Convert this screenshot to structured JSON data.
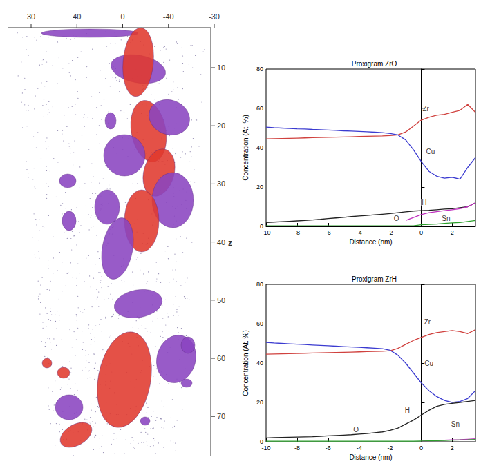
{
  "reconstruction": {
    "top_ticks": [
      "30",
      "40",
      "0",
      "-40",
      "-30"
    ],
    "z_label": "z",
    "z_ticks": [
      10,
      20,
      30,
      40,
      50,
      60,
      70
    ]
  },
  "chart_data": [
    {
      "type": "line",
      "title": "Proxigram ZrO",
      "x_label": "Distance (nm)",
      "y_label": "Concentration (At. %)",
      "x": [
        -10,
        -9.5,
        -9,
        -8.5,
        -8,
        -7.5,
        -7,
        -6.5,
        -6,
        -5.5,
        -5,
        -4.5,
        -4,
        -3.5,
        -3,
        -2.5,
        -2,
        -1.5,
        -1,
        -0.5,
        0,
        0.5,
        1,
        1.5,
        2,
        2.5,
        3,
        3.5
      ],
      "xlim": [
        -10,
        3.5
      ],
      "xticks": [
        -10,
        -8,
        -6,
        -4,
        -2,
        0,
        2
      ],
      "ylim": [
        0,
        80
      ],
      "yticks": [
        0,
        20,
        40,
        60,
        80
      ],
      "grid": false,
      "series": [
        {
          "name": "Zr",
          "color": "#d0413e",
          "values": [
            44.5,
            44.6,
            44.7,
            44.8,
            44.9,
            45,
            45.1,
            45.2,
            45.3,
            45.4,
            45.5,
            45.6,
            45.7,
            45.8,
            45.9,
            46,
            46.2,
            46.5,
            48,
            51,
            54,
            55.5,
            56.5,
            57,
            58,
            59,
            62,
            58
          ]
        },
        {
          "name": "Cu",
          "color": "#3b3bd0",
          "values": [
            50.5,
            50.2,
            50,
            49.8,
            49.6,
            49.5,
            49.3,
            49.2,
            49,
            48.8,
            48.6,
            48.5,
            48.3,
            48.1,
            47.9,
            47.7,
            47.2,
            46.5,
            44,
            39,
            33,
            28,
            25.5,
            24.5,
            25,
            24,
            30,
            35
          ]
        },
        {
          "name": "H",
          "color": "#222222",
          "values": [
            2,
            2.2,
            2.4,
            2.6,
            2.8,
            3,
            3.3,
            3.6,
            4,
            4.3,
            4.6,
            5,
            5.3,
            5.6,
            5.9,
            6.2,
            6.5,
            7,
            7.4,
            7.8,
            8,
            8.2,
            8.5,
            8.8,
            9,
            9.5,
            10,
            12
          ]
        },
        {
          "name": "O",
          "color": "#c030c0",
          "values": [
            null,
            null,
            null,
            null,
            null,
            null,
            null,
            null,
            null,
            null,
            null,
            null,
            null,
            null,
            null,
            null,
            null,
            null,
            3,
            4.5,
            6,
            7,
            7.5,
            8,
            8.5,
            9,
            10,
            12
          ]
        },
        {
          "name": "Sn",
          "color": "#2ca02c",
          "values": [
            0.3,
            0.3,
            0.3,
            0.3,
            0.3,
            0.3,
            0.3,
            0.3,
            0.3,
            0.3,
            0.3,
            0.3,
            0.3,
            0.3,
            0.3,
            0.3,
            0.3,
            0.3,
            0.3,
            0.3,
            0.8,
            1,
            1.2,
            1.5,
            1.8,
            2,
            2.5,
            3
          ]
        }
      ],
      "annotations": [
        {
          "text": "Zr",
          "x": 0.3,
          "y": 60
        },
        {
          "text": "Cu",
          "x": 0.6,
          "y": 38
        },
        {
          "text": "H",
          "x": 0.2,
          "y": 12
        },
        {
          "text": "O",
          "x": -1.6,
          "y": 4
        },
        {
          "text": "Sn",
          "x": 1.6,
          "y": 4
        }
      ]
    },
    {
      "type": "line",
      "title": "Proxigram ZrH",
      "x_label": "Distance (nm)",
      "y_label": "Concentration (At. %)",
      "x": [
        -10,
        -9.5,
        -9,
        -8.5,
        -8,
        -7.5,
        -7,
        -6.5,
        -6,
        -5.5,
        -5,
        -4.5,
        -4,
        -3.5,
        -3,
        -2.5,
        -2,
        -1.5,
        -1,
        -0.5,
        0,
        0.5,
        1,
        1.5,
        2,
        2.5,
        3,
        3.5
      ],
      "xlim": [
        -10,
        3.5
      ],
      "xticks": [
        -10,
        -8,
        -6,
        -4,
        -2,
        0,
        2
      ],
      "ylim": [
        0,
        80
      ],
      "yticks": [
        0,
        20,
        40,
        60,
        80
      ],
      "grid": false,
      "series": [
        {
          "name": "Zr",
          "color": "#d0413e",
          "values": [
            44.5,
            44.6,
            44.7,
            44.8,
            44.9,
            45,
            45.1,
            45.2,
            45.3,
            45.4,
            45.5,
            45.6,
            45.7,
            45.8,
            45.9,
            46,
            46.3,
            47.5,
            49.5,
            51.5,
            53,
            54.5,
            55.5,
            56,
            56.5,
            56,
            55,
            57
          ]
        },
        {
          "name": "Cu",
          "color": "#3b3bd0",
          "values": [
            50.5,
            50.2,
            50,
            49.8,
            49.6,
            49.4,
            49.2,
            49,
            48.8,
            48.6,
            48.4,
            48.2,
            48,
            47.8,
            47.6,
            47.3,
            46.5,
            44,
            40,
            35,
            30,
            26,
            23,
            21,
            20,
            20.5,
            22,
            26
          ]
        },
        {
          "name": "H",
          "color": "#222222",
          "values": [
            2,
            2.1,
            2.2,
            2.3,
            2.4,
            2.5,
            2.6,
            2.8,
            3,
            3.2,
            3.4,
            3.6,
            3.9,
            4.2,
            4.6,
            5,
            5.8,
            7,
            9,
            11,
            13.5,
            16,
            18,
            19,
            19.5,
            20,
            20.5,
            21
          ]
        },
        {
          "name": "O",
          "color": "#c030c0",
          "values": [
            null,
            null,
            null,
            null,
            null,
            null,
            null,
            null,
            null,
            null,
            null,
            null,
            null,
            null,
            null,
            null,
            null,
            null,
            null,
            null,
            0.3,
            0.5,
            0.7,
            0.8,
            1,
            1.1,
            1.3,
            1.5
          ]
        },
        {
          "name": "Sn",
          "color": "#2ca02c",
          "values": [
            0.3,
            0.3,
            0.3,
            0.3,
            0.3,
            0.3,
            0.3,
            0.3,
            0.3,
            0.3,
            0.3,
            0.3,
            0.3,
            0.3,
            0.3,
            0.3,
            0.3,
            0.3,
            0.3,
            0.3,
            0.4,
            0.5,
            0.6,
            0.7,
            0.8,
            0.9,
            1,
            1.2
          ]
        }
      ],
      "annotations": [
        {
          "text": "Zr",
          "x": 0.4,
          "y": 61
        },
        {
          "text": "Cu",
          "x": 0.5,
          "y": 40
        },
        {
          "text": "H",
          "x": -0.9,
          "y": 16
        },
        {
          "text": "O",
          "x": -4.2,
          "y": 6
        },
        {
          "text": "Sn",
          "x": 2.2,
          "y": 9
        }
      ]
    }
  ]
}
